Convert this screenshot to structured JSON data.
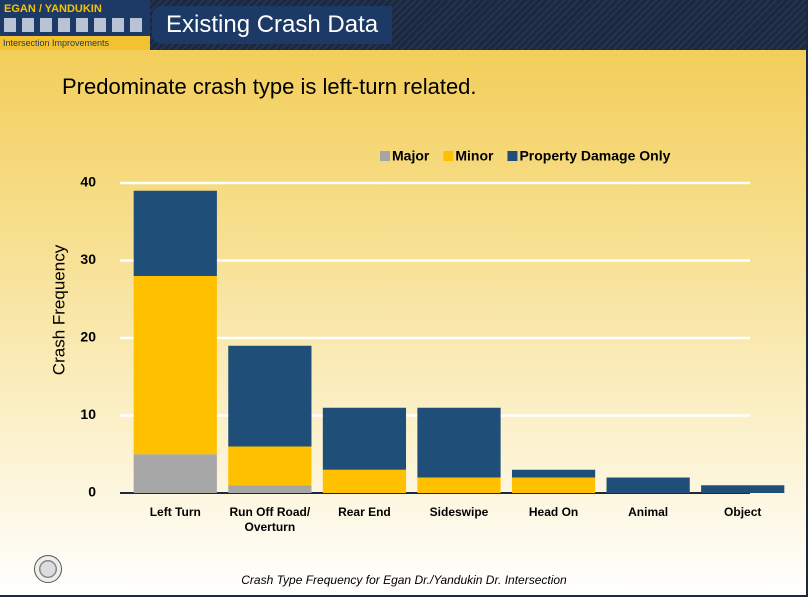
{
  "header": {
    "logo_title": "EGAN / YANDUKIN",
    "logo_subtitle": "Intersection Improvements",
    "title": "Existing Crash Data"
  },
  "subtitle": "Predominate crash type is left-turn related.",
  "caption": "Crash Type Frequency for Egan Dr./Yandukin Dr. Intersection",
  "chart_data": {
    "type": "stacked_bar",
    "y_label": "Crash Frequency",
    "categories": [
      "Left Turn",
      "Run Off Road/ Overturn",
      "Rear End",
      "Sideswipe",
      "Head On",
      "Animal",
      "Object"
    ],
    "series": [
      {
        "name": "Major",
        "color": "#a6a6a6",
        "values": [
          5,
          1,
          0,
          0,
          0,
          0,
          0
        ]
      },
      {
        "name": "Minor",
        "color": "#ffc000",
        "values": [
          23,
          5,
          3,
          2,
          2,
          0,
          0
        ]
      },
      {
        "name": "Property Damage Only",
        "color": "#1f4e79",
        "values": [
          11,
          13,
          8,
          9,
          1,
          2,
          1
        ]
      }
    ],
    "ylim": [
      0,
      40
    ],
    "yticks": [
      0,
      10,
      20,
      30,
      40
    ],
    "grid": true,
    "legend": "top-right"
  }
}
